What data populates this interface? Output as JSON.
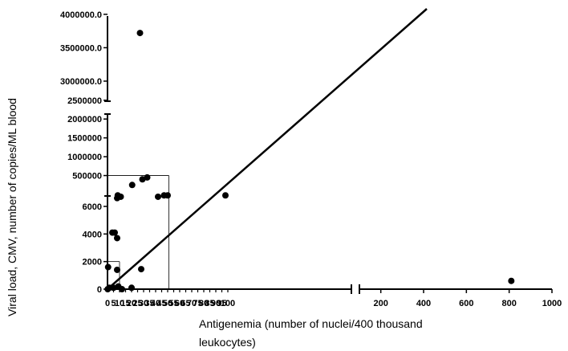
{
  "chart_data": {
    "type": "scatter",
    "title": "",
    "xlabel_lines": [
      "Antigenemia (number of nuclei/400 thousand",
      "leukocytes)"
    ],
    "ylabel": "Viral load, CMV, number of copies/ML blood",
    "grid": false,
    "legend": "none",
    "x_segments": [
      {
        "range": [
          0,
          100
        ],
        "ticks": [
          0,
          5,
          10,
          15,
          20,
          25,
          30,
          35,
          40,
          45,
          50,
          55,
          60,
          65,
          70,
          75,
          80,
          85,
          90,
          95,
          100
        ]
      },
      {
        "range": [
          100,
          1000
        ],
        "ticks": [
          200,
          400,
          600,
          800,
          1000
        ]
      }
    ],
    "y_segments": [
      {
        "range": [
          0,
          6000
        ],
        "ticks": [
          "0",
          "2000",
          "4000",
          "6000"
        ]
      },
      {
        "range": [
          0,
          2500000
        ],
        "ticks": [
          "500000",
          "1000000",
          "1500000",
          "2000000",
          "2500000"
        ]
      },
      {
        "range": [
          3000000,
          4000000
        ],
        "ticks": [
          "3000000.0",
          "3500000.0",
          "4000000.0"
        ]
      }
    ],
    "points": [
      {
        "x": 0.2,
        "y": 0
      },
      {
        "x": 0.5,
        "y": 1600
      },
      {
        "x": 1.5,
        "y": 100
      },
      {
        "x": 4,
        "y": 4100
      },
      {
        "x": 5,
        "y": 100
      },
      {
        "x": 6,
        "y": 4100
      },
      {
        "x": 8,
        "y": 1400
      },
      {
        "x": 8,
        "y": 3700
      },
      {
        "x": 8,
        "y": 6600
      },
      {
        "x": 8.5,
        "y": 6800
      },
      {
        "x": 9,
        "y": 200
      },
      {
        "x": 11,
        "y": 6700
      },
      {
        "x": 12,
        "y": 0
      },
      {
        "x": 20,
        "y": 100
      },
      {
        "x": 20.5,
        "y": 250000
      },
      {
        "x": 27,
        "y": 3720000
      },
      {
        "x": 28,
        "y": 1450
      },
      {
        "x": 29,
        "y": 400000
      },
      {
        "x": 33,
        "y": 450000
      },
      {
        "x": 42,
        "y": 6700
      },
      {
        "x": 47,
        "y": 6800
      },
      {
        "x": 50,
        "y": 6800
      },
      {
        "x": 98,
        "y": 6800
      },
      {
        "x": 810,
        "y": 600
      }
    ],
    "regression_line": {
      "x": [
        0,
        130
      ],
      "y": [
        0,
        4100000
      ]
    },
    "reference_lines": [
      {
        "x": 10,
        "y": 2000
      },
      {
        "x": 51,
        "y": 500000
      }
    ]
  }
}
